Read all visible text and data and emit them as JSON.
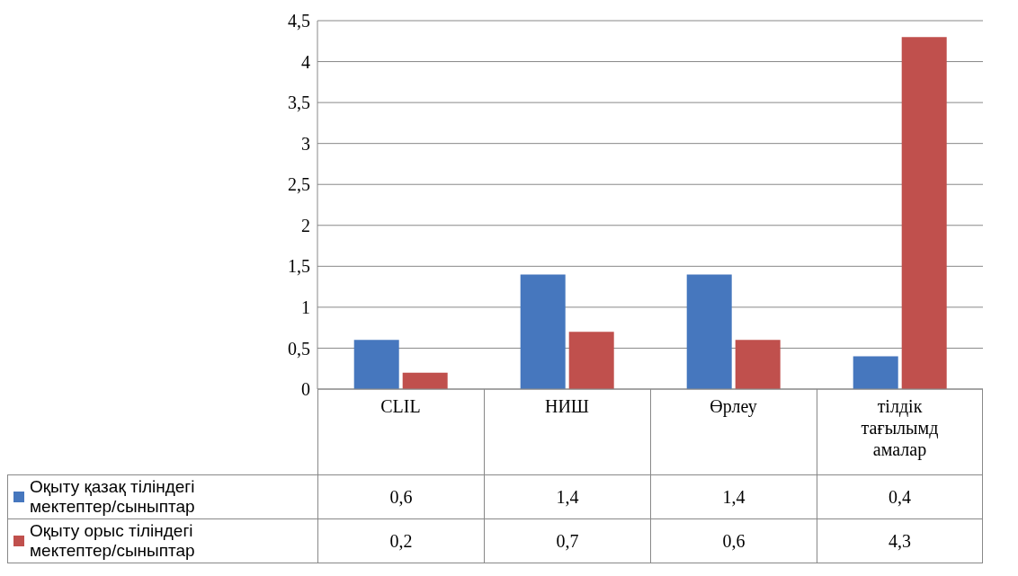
{
  "chart_data": {
    "type": "bar",
    "categories": [
      "CLIL",
      "НИШ",
      "Өрлеу",
      "тілдік тағылымд амалар"
    ],
    "series": [
      {
        "name": "Оқыту қазақ тіліндегі мектептер/сыныптар",
        "color": "#4677be",
        "values": [
          0.6,
          1.4,
          1.4,
          0.4
        ],
        "value_labels": [
          "0,6",
          "1,4",
          "1,4",
          "0,4"
        ]
      },
      {
        "name": "Оқыту орыс тіліндегі мектептер/сыныптар",
        "color": "#c0504d",
        "values": [
          0.2,
          0.7,
          0.6,
          4.3
        ],
        "value_labels": [
          "0,2",
          "0,7",
          "0,6",
          "4,3"
        ]
      }
    ],
    "ylim": [
      0,
      4.5
    ],
    "yticks": [
      0,
      {
        "value": 0.5,
        "label": "0,5"
      },
      1,
      {
        "value": 1.5,
        "label": "1,5"
      },
      2,
      {
        "value": 2.5,
        "label": "2,5"
      },
      3,
      {
        "value": 3.5,
        "label": "3,5"
      },
      4,
      {
        "value": 4.5,
        "label": "4,5"
      }
    ],
    "grid": "y",
    "legend": "bottom"
  }
}
